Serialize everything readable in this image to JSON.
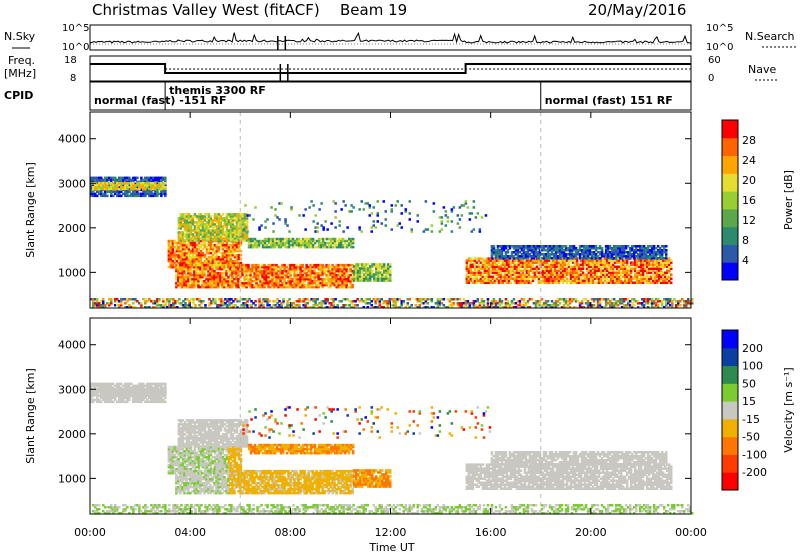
{
  "header": {
    "title": "Christmas Valley West (fitACF)",
    "beam": "Beam 19",
    "date": "20/May/2016"
  },
  "side_labels": {
    "nsky": "N.Sky",
    "freq_top": "Freq.",
    "freq_unit": "[MHz]",
    "cpid": "CPID",
    "nsearch": "N.Search",
    "nave": "Nave"
  },
  "noise_panel": {
    "left_ticks": [
      "10^5",
      "10^0"
    ],
    "right_ticks": [
      "10^5",
      "10^0"
    ]
  },
  "freq_panel": {
    "left_ticks": [
      "18",
      "8"
    ],
    "right_ticks": [
      "60",
      "0"
    ]
  },
  "cpid_segments": [
    {
      "label": "normal (fast) -151 RF",
      "start": 0,
      "end": 3
    },
    {
      "label": "themis 3300 RF",
      "start": 3,
      "end": 18
    },
    {
      "label": "normal (fast) 151 RF",
      "start": 18,
      "end": 24
    }
  ],
  "chart_data": [
    {
      "type": "heatmap",
      "name": "Power",
      "ylabel": "Slant Range [km]",
      "yticks": [
        "1000",
        "2000",
        "3000",
        "4000"
      ],
      "ylim": [
        200,
        4600
      ],
      "colorbar": {
        "label": "Power [dB]",
        "ticks": [
          "4",
          "8",
          "12",
          "16",
          "20",
          "24",
          "28"
        ],
        "range": [
          0,
          30
        ]
      }
    },
    {
      "type": "heatmap",
      "name": "Velocity",
      "ylabel": "Slant Range [km]",
      "yticks": [
        "1000",
        "2000",
        "3000",
        "4000"
      ],
      "ylim": [
        200,
        4600
      ],
      "colorbar": {
        "label": "Velocity [m s⁻¹]",
        "ticks": [
          "200",
          "100",
          "50",
          "15",
          "-15",
          "-50",
          "-100",
          "-200"
        ]
      }
    }
  ],
  "xaxis": {
    "label": "Time UT",
    "ticks": [
      "00:00",
      "04:00",
      "08:00",
      "12:00",
      "16:00",
      "20:00",
      "00:00"
    ],
    "xlim": [
      0,
      24
    ]
  },
  "colors": {
    "power": [
      "#0000ff",
      "#2a5aa8",
      "#2e8a6e",
      "#5aa84a",
      "#9acd32",
      "#e6dc32",
      "#ffa500",
      "#ff6400",
      "#ff0000"
    ],
    "velocity": [
      "#0000ff",
      "#0b3fa0",
      "#2e8a4e",
      "#7acc30",
      "#c8c8c0",
      "#f0b000",
      "#ff7700",
      "#ff3c00",
      "#ff0000"
    ]
  }
}
